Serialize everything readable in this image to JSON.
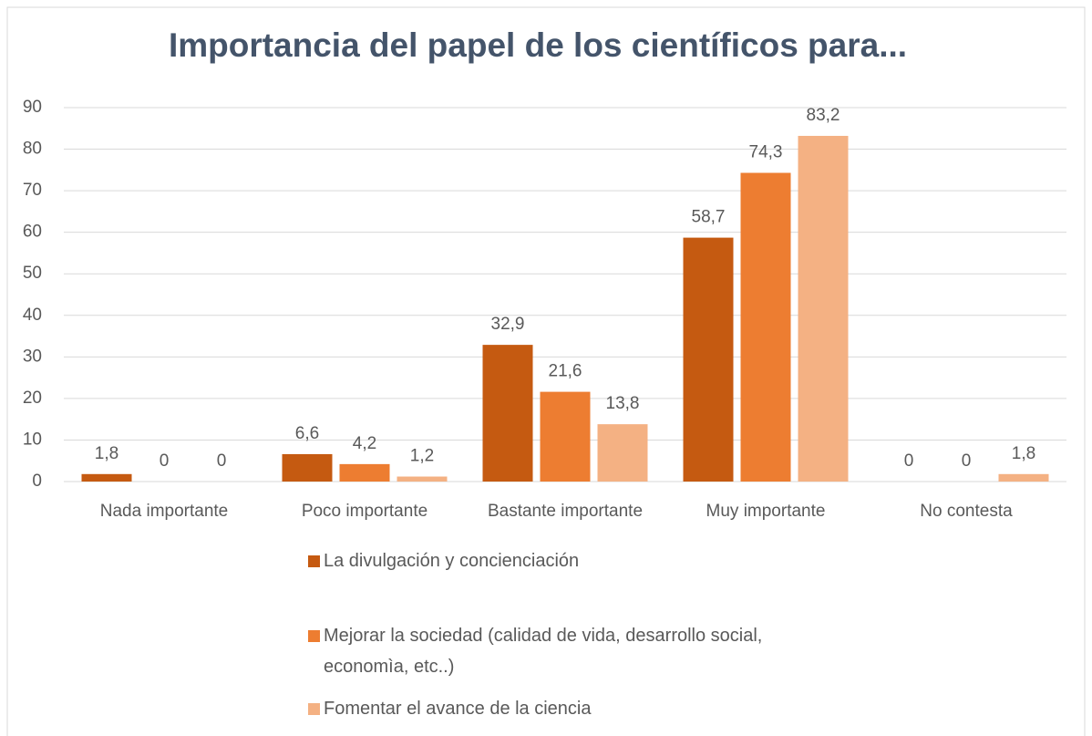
{
  "chart_data": {
    "type": "bar",
    "title": "Importancia del papel de los científicos para...",
    "categories": [
      "Nada importante",
      "Poco importante",
      "Bastante importante",
      "Muy importante",
      "No contesta"
    ],
    "series": [
      {
        "name": "La divulgación y concienciación",
        "color": "#c55a11",
        "values": [
          1.8,
          6.6,
          32.9,
          58.7,
          0
        ],
        "value_labels": [
          "1,8",
          "6,6",
          "32,9",
          "58,7",
          "0"
        ]
      },
      {
        "name": "Mejorar la sociedad (calidad de vida, desarrollo social, economìa, etc..)",
        "color": "#ed7d31",
        "values": [
          0,
          4.2,
          21.6,
          74.3,
          0
        ],
        "value_labels": [
          "0",
          "4,2",
          "21,6",
          "74,3",
          "0"
        ]
      },
      {
        "name": "Fomentar el avance de la ciencia",
        "color": "#f4b183",
        "values": [
          0,
          1.2,
          13.8,
          83.2,
          1.8
        ],
        "value_labels": [
          "0",
          "1,2",
          "13,8",
          "83,2",
          "1,8"
        ]
      }
    ],
    "ylim": [
      0,
      90
    ],
    "yticks": [
      0,
      10,
      20,
      30,
      40,
      50,
      60,
      70,
      80,
      90
    ],
    "grid": true,
    "legend": "bottom"
  }
}
